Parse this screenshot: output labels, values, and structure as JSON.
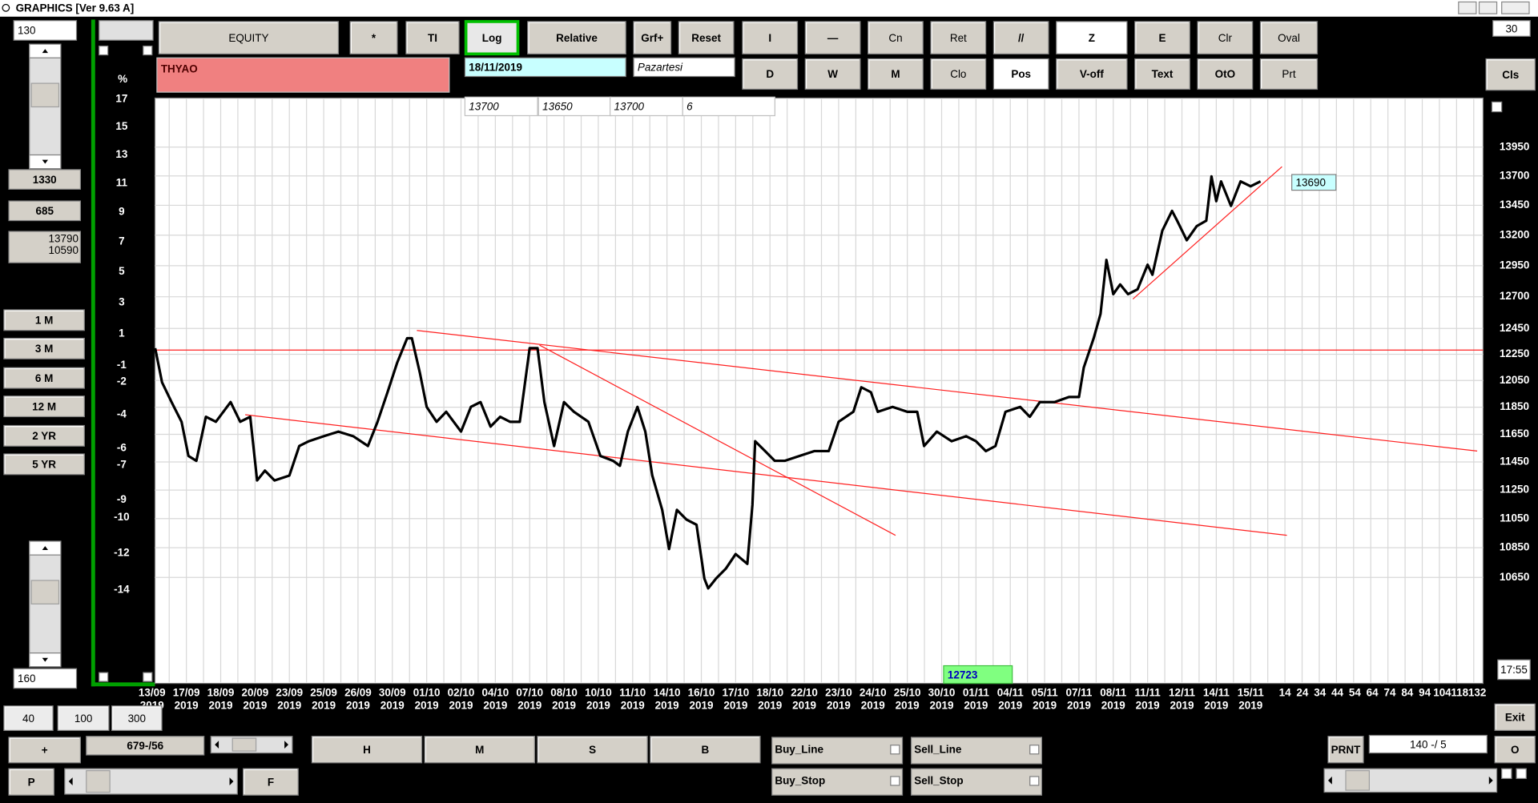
{
  "window": {
    "title": "GRAPHICS  [Ver 9.63 A]"
  },
  "left_panel": {
    "field_top": "130",
    "field_a": "1330",
    "field_b": "685",
    "range_high": "13790",
    "range_low": "10590",
    "periods": [
      "1 M",
      "3 M",
      "6 M",
      "12 M",
      "2 YR",
      "5 YR"
    ],
    "field_bottom": "160"
  },
  "toolbar": {
    "row1": [
      "EQUITY",
      "*",
      "TI",
      "Log",
      "Relative",
      "Grf+",
      "Reset"
    ],
    "tools_row1": [
      "I",
      "—",
      "Cn",
      "Ret",
      "//",
      "Z",
      "E",
      "Clr",
      "Oval"
    ],
    "tools_row2": [
      "D",
      "W",
      "M",
      "Clo",
      "Pos",
      "V-off",
      "Text",
      "OtO",
      "Prt"
    ],
    "spin": "30",
    "cls": "Cls"
  },
  "symbol": "THYAO",
  "date": "18/11/2019",
  "weekday": "Pazartesi",
  "quote_boxes": [
    "13700",
    "13650",
    "13700",
    "6"
  ],
  "cursor_price": "12723",
  "last_label": "13690",
  "time": "17:55",
  "bottom": {
    "zoom": [
      "40",
      "100",
      "300"
    ],
    "plus": "+",
    "position": "679-/56",
    "hmsb": [
      "H",
      "M",
      "S",
      "B"
    ],
    "checks": [
      "Buy_Line",
      "Sell_Line",
      "Buy_Stop",
      "Sell_Stop"
    ],
    "p": "P",
    "f": "F",
    "prnt": "PRNT",
    "counter": "140 -/ 5",
    "exit": "Exit",
    "o": "O"
  },
  "chart_data": {
    "type": "line",
    "color": "#000000",
    "log_scale": true,
    "grid": true,
    "x_labels": [
      "13/09",
      "17/09",
      "18/09",
      "20/09",
      "23/09",
      "25/09",
      "26/09",
      "30/09",
      "01/10",
      "02/10",
      "04/10",
      "07/10",
      "08/10",
      "10/10",
      "11/10",
      "14/10",
      "16/10",
      "17/10",
      "18/10",
      "22/10",
      "23/10",
      "24/10",
      "25/10",
      "30/10",
      "01/11",
      "04/11",
      "05/11",
      "07/11",
      "08/11",
      "11/11",
      "12/11",
      "14/11",
      "15/11"
    ],
    "x_sublabel": "2019",
    "x_extra_labels": [
      14,
      24,
      34,
      44,
      54,
      64,
      74,
      84,
      94,
      104,
      118,
      132
    ],
    "xlim": [
      0,
      38.6
    ],
    "x": [
      0.09,
      0.29,
      0.57,
      0.86,
      1.06,
      1.29,
      1.57,
      1.86,
      2.29,
      2.57,
      2.86,
      3.06,
      3.29,
      3.57,
      4,
      4.29,
      4.57,
      5,
      5.43,
      5.86,
      6.29,
      6.57,
      6.86,
      7.14,
      7.43,
      7.57,
      7.8,
      8,
      8.29,
      8.57,
      9,
      9.29,
      9.57,
      9.86,
      10.14,
      10.43,
      10.71,
      11,
      11.23,
      11.43,
      11.71,
      12,
      12.29,
      12.71,
      13.06,
      13.43,
      13.63,
      13.86,
      14.14,
      14.37,
      14.57,
      14.86,
      15.06,
      15.29,
      15.57,
      15.86,
      16.09,
      16.2,
      16.43,
      16.71,
      17,
      17.34,
      17.49,
      17.57,
      17.86,
      18.14,
      18.43,
      18.86,
      19.29,
      19.71,
      20,
      20.43,
      20.66,
      20.94,
      21.14,
      21.57,
      22,
      22.29,
      22.49,
      22.86,
      23.29,
      23.71,
      24,
      24.29,
      24.57,
      24.86,
      25.29,
      25.57,
      25.86,
      26.29,
      26.71,
      27,
      27.14,
      27.43,
      27.63,
      27.8,
      28,
      28.2,
      28.43,
      28.71,
      29,
      29.14,
      29.43,
      29.71,
      29.86,
      30.14,
      30.43,
      30.71,
      30.86,
      31,
      31.14,
      31.43,
      31.71,
      32,
      32.29
    ],
    "values": [
      12297,
      12036,
      11888,
      11742,
      11493,
      11458,
      11779,
      11742,
      11888,
      11742,
      11779,
      11318,
      11388,
      11318,
      11353,
      11565,
      11600,
      11636,
      11670,
      11636,
      11565,
      11742,
      11962,
      12185,
      12374,
      12374,
      12110,
      11852,
      11742,
      11816,
      11670,
      11852,
      11888,
      11707,
      11779,
      11742,
      11742,
      12297,
      12297,
      11888,
      11565,
      11888,
      11816,
      11742,
      11493,
      11458,
      11422,
      11670,
      11852,
      11670,
      11353,
      11111,
      10841,
      11111,
      11043,
      11008,
      10642,
      10577,
      10642,
      10708,
      10807,
      10741,
      11145,
      11600,
      11528,
      11458,
      11458,
      11493,
      11528,
      11528,
      11742,
      11816,
      11999,
      11962,
      11816,
      11852,
      11816,
      11816,
      11565,
      11670,
      11600,
      11636,
      11600,
      11528,
      11565,
      11816,
      11852,
      11779,
      11888,
      11888,
      11926,
      11926,
      12148,
      12374,
      12565,
      12997,
      12721,
      12799,
      12721,
      12760,
      12958,
      12877,
      13238,
      13403,
      13321,
      13159,
      13275,
      13321,
      13696,
      13485,
      13653,
      13445,
      13653,
      13611,
      13653
    ],
    "ylim": [
      9965,
      14386
    ],
    "yticks": [
      13950,
      13700,
      13450,
      13200,
      12950,
      12700,
      12450,
      12250,
      12050,
      11850,
      11650,
      11450,
      11250,
      11050,
      10850,
      10650
    ],
    "y2_label": "%",
    "y2lim": [
      -18.9,
      17.1
    ],
    "y2ticks": [
      17,
      15,
      13,
      11,
      9,
      7,
      5,
      3,
      1,
      -1,
      -2,
      -4,
      -6,
      -7,
      -9,
      -10,
      -12,
      -14
    ]
  }
}
